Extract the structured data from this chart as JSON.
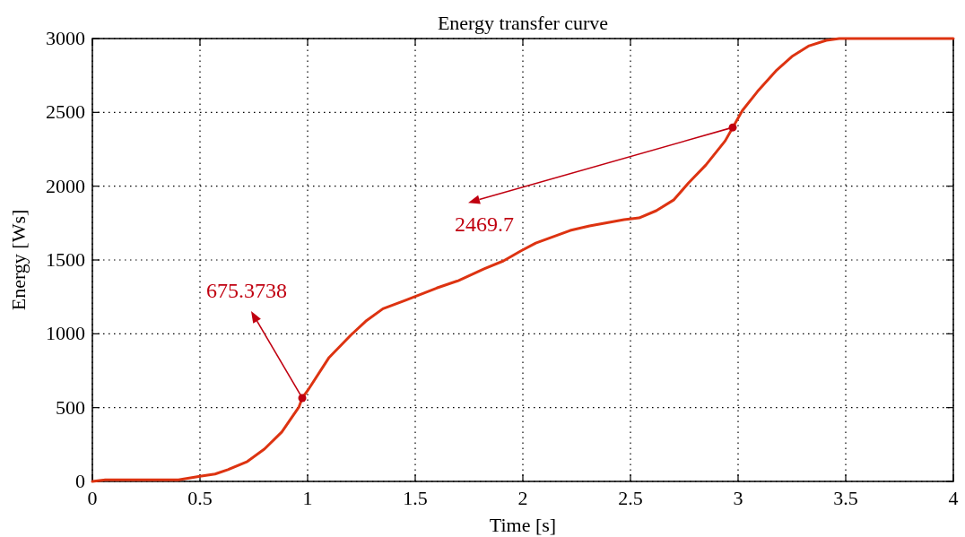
{
  "chart_data": {
    "type": "line",
    "title": "Energy transfer curve",
    "xlabel": "Time [s]",
    "ylabel": "Energy [Ws]",
    "series": [
      {
        "color": "#dd3311",
        "x": [
          0,
          0.06,
          0.4,
          0.5,
          0.57,
          0.63,
          0.72,
          0.8,
          0.88,
          0.96,
          0.975,
          1.0,
          1.1,
          1.2,
          1.27,
          1.35,
          1.45,
          1.6,
          1.7,
          1.82,
          1.91,
          1.99,
          2.06,
          2.22,
          2.31,
          2.47,
          2.54,
          2.62,
          2.7,
          2.77,
          2.85,
          2.94,
          3.02,
          3.09,
          3.18,
          3.25,
          3.33,
          3.41,
          3.47,
          4
        ],
        "values": [
          0,
          10,
          10,
          35,
          50,
          80,
          135,
          220,
          335,
          505,
          565,
          615,
          840,
          990,
          1085,
          1170,
          1225,
          1310,
          1360,
          1440,
          1494,
          1561,
          1615,
          1700,
          1731,
          1773,
          1785,
          1834,
          1906,
          2022,
          2143,
          2307,
          2513,
          2641,
          2787,
          2878,
          2951,
          2988,
          3000,
          3000
        ]
      }
    ],
    "annotations": [
      {
        "text": "675.3738",
        "x": 0.975,
        "y": 565
      },
      {
        "text": "2469.7",
        "x": 2.975,
        "y": 2398
      }
    ],
    "xlim": [
      0,
      4
    ],
    "xticks": [
      0,
      0.5,
      1,
      1.5,
      2,
      2.5,
      3,
      3.5,
      4
    ],
    "ylim": [
      0,
      3000
    ],
    "yticks": [
      0,
      500,
      1000,
      1500,
      2000,
      2500,
      3000
    ],
    "grid": true,
    "marker": "none",
    "line_style": "solid"
  }
}
